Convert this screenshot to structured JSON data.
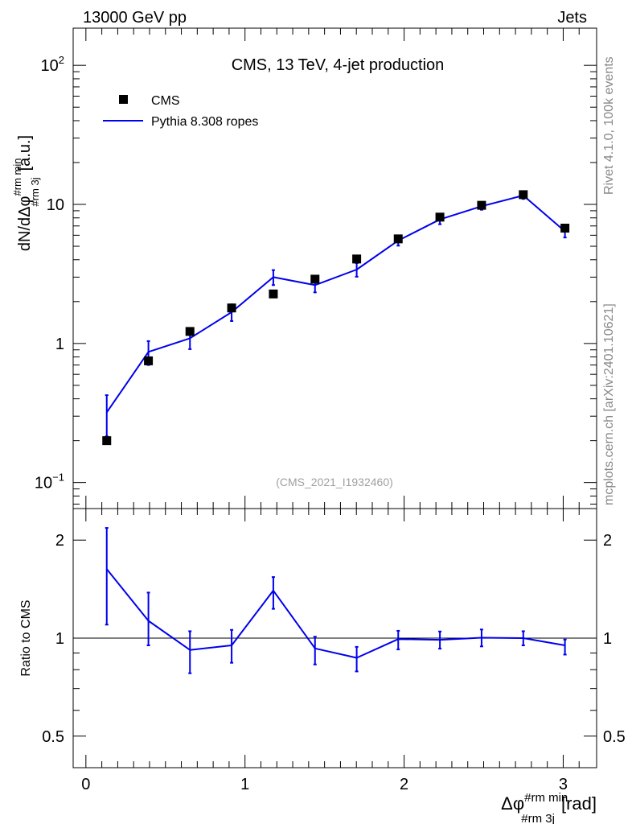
{
  "header": {
    "left": "13000 GeV pp",
    "right": "Jets"
  },
  "side_text": {
    "top": "Rivet 4.1.0,  100k events",
    "bottom": "mcplots.cern.ch [arXiv:2401.10621]"
  },
  "chart_data": [
    {
      "panel": "main",
      "type": "line",
      "title": "CMS, 13 TeV, 4-jet production",
      "watermark": "(CMS_2021_I1932460)",
      "ylabel": "dN/dΔφ",
      "ylabel_sup": "#rm min",
      "ylabel_sub": "#rm 3j",
      "ylabel_unit": "[a.u.]",
      "yscale": "log",
      "xlim": [
        -0.08,
        3.21
      ],
      "ylim": [
        0.065,
        185
      ],
      "y_tick_labels": [
        {
          "value": 0.1,
          "base": "10",
          "exp": "−1"
        },
        {
          "value": 1,
          "base": "1",
          "exp": ""
        },
        {
          "value": 10,
          "base": "10",
          "exp": ""
        },
        {
          "value": 100,
          "base": "10",
          "exp": "2"
        }
      ],
      "legend": [
        {
          "label": "CMS",
          "color": "#000000",
          "marker": "square"
        },
        {
          "label": "Pythia 8.308 ropes",
          "color": "#0000ee",
          "marker": "line"
        }
      ],
      "legend_position": "top-left",
      "series": [
        {
          "name": "CMS",
          "x": [
            0.131,
            0.393,
            0.654,
            0.916,
            1.178,
            1.44,
            1.702,
            1.963,
            2.225,
            2.487,
            2.749,
            3.011
          ],
          "y": [
            0.2,
            0.75,
            1.22,
            1.8,
            2.27,
            2.9,
            4.05,
            5.65,
            8.1,
            9.85,
            11.75,
            6.75
          ]
        },
        {
          "name": "Pythia 8.308 ropes",
          "x": [
            0.131,
            0.393,
            0.654,
            0.916,
            1.178,
            1.44,
            1.702,
            1.963,
            2.225,
            2.487,
            2.749,
            3.011
          ],
          "y": [
            0.32,
            0.87,
            1.09,
            1.68,
            3.0,
            2.63,
            3.4,
            5.5,
            7.8,
            9.7,
            11.6,
            6.4
          ],
          "y_err": [
            0.105,
            0.17,
            0.18,
            0.23,
            0.37,
            0.3,
            0.38,
            0.45,
            0.6,
            0.55,
            0.65,
            0.62
          ]
        }
      ]
    },
    {
      "panel": "ratio",
      "type": "line",
      "ylabel": "Ratio to CMS",
      "xlabel": "Δφ",
      "xlabel_sup": "#rm min",
      "xlabel_sub": "#rm 3j",
      "xlabel_unit": "[rad]",
      "yscale": "log",
      "xlim": [
        -0.08,
        3.21
      ],
      "ylim": [
        0.4,
        2.5
      ],
      "x_ticks": [
        0,
        1,
        2,
        3
      ],
      "x_tick_labels": [
        "0",
        "1",
        "2",
        "3"
      ],
      "y_ticks": [
        0.5,
        1,
        2
      ],
      "y_tick_labels": [
        "0.5",
        "1",
        "2"
      ],
      "reference_line": 1,
      "series": [
        {
          "name": "Pythia 8.308 ropes / CMS",
          "x": [
            0.131,
            0.393,
            0.654,
            0.916,
            1.178,
            1.44,
            1.702,
            1.963,
            2.225,
            2.487,
            2.749,
            3.011
          ],
          "y": [
            1.63,
            1.13,
            0.92,
            0.95,
            1.4,
            0.93,
            0.87,
            0.993,
            0.988,
            1.003,
            1.0,
            0.95
          ],
          "y_err_low": [
            0.53,
            0.18,
            0.14,
            0.11,
            0.17,
            0.1,
            0.08,
            0.07,
            0.06,
            0.06,
            0.05,
            0.06
          ],
          "y_err_high": [
            0.55,
            0.25,
            0.13,
            0.11,
            0.14,
            0.08,
            0.07,
            0.06,
            0.06,
            0.06,
            0.05,
            0.04
          ]
        }
      ]
    }
  ]
}
